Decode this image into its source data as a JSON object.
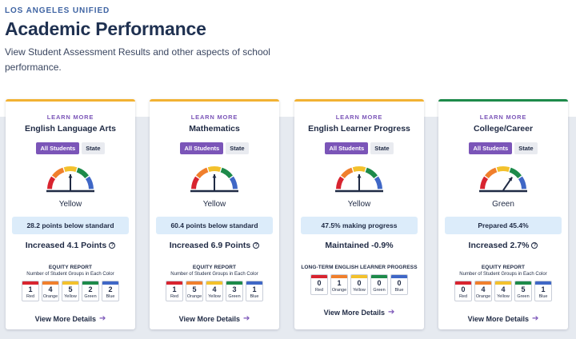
{
  "header": {
    "district": "LOS ANGELES UNIFIED",
    "title": "Academic Performance",
    "subtitle": "View Student Assessment Results and other aspects of school performance."
  },
  "colors": {
    "purple": "#7b55b8",
    "red": "#d8242f",
    "orange": "#f07f2c",
    "yellow": "#f3c12c",
    "green": "#1d8a4a",
    "blue": "#3f67c6"
  },
  "cards": [
    {
      "learn_more": "LEARN MORE",
      "title": "English Language Arts",
      "toggle_all": "All Students",
      "toggle_state": "State",
      "gauge_level": "Yellow",
      "status": "28.2 points below standard",
      "change": "Increased 4.1 Points",
      "equity_title": "EQUITY REPORT",
      "equity_sub": "Number of Student Groups in Each Color",
      "equity": [
        {
          "count": "1",
          "label": "Red"
        },
        {
          "count": "4",
          "label": "Orange"
        },
        {
          "count": "5",
          "label": "Yellow"
        },
        {
          "count": "2",
          "label": "Green"
        },
        {
          "count": "2",
          "label": "Blue"
        }
      ],
      "details": "View More Details"
    },
    {
      "learn_more": "LEARN MORE",
      "title": "Mathematics",
      "toggle_all": "All Students",
      "toggle_state": "State",
      "gauge_level": "Yellow",
      "status": "60.4 points below standard",
      "change": "Increased 6.9 Points",
      "equity_title": "EQUITY REPORT",
      "equity_sub": "Number of Student Groups in Each Color",
      "equity": [
        {
          "count": "1",
          "label": "Red"
        },
        {
          "count": "5",
          "label": "Orange"
        },
        {
          "count": "4",
          "label": "Yellow"
        },
        {
          "count": "3",
          "label": "Green"
        },
        {
          "count": "1",
          "label": "Blue"
        }
      ],
      "details": "View More Details"
    },
    {
      "learn_more": "LEARN MORE",
      "title": "English Learner Progress",
      "toggle_all": "All Students",
      "toggle_state": "State",
      "gauge_level": "Yellow",
      "status": "47.5% making progress",
      "change": "Maintained -0.9%",
      "equity_title": "LONG-TERM ENGLISH LEARNER PROGRESS",
      "equity_sub": "",
      "equity": [
        {
          "count": "0",
          "label": "Red"
        },
        {
          "count": "1",
          "label": "Orange"
        },
        {
          "count": "0",
          "label": "Yellow"
        },
        {
          "count": "0",
          "label": "Green"
        },
        {
          "count": "0",
          "label": "Blue"
        }
      ],
      "details": "View More Details"
    },
    {
      "learn_more": "LEARN MORE",
      "title": "College/Career",
      "toggle_all": "All Students",
      "toggle_state": "State",
      "gauge_level": "Green",
      "status": "Prepared 45.4%",
      "change": "Increased 2.7%",
      "equity_title": "EQUITY REPORT",
      "equity_sub": "Number of Student Groups in Each Color",
      "equity": [
        {
          "count": "0",
          "label": "Red"
        },
        {
          "count": "4",
          "label": "Orange"
        },
        {
          "count": "4",
          "label": "Yellow"
        },
        {
          "count": "5",
          "label": "Green"
        },
        {
          "count": "1",
          "label": "Blue"
        }
      ],
      "details": "View More Details"
    }
  ]
}
